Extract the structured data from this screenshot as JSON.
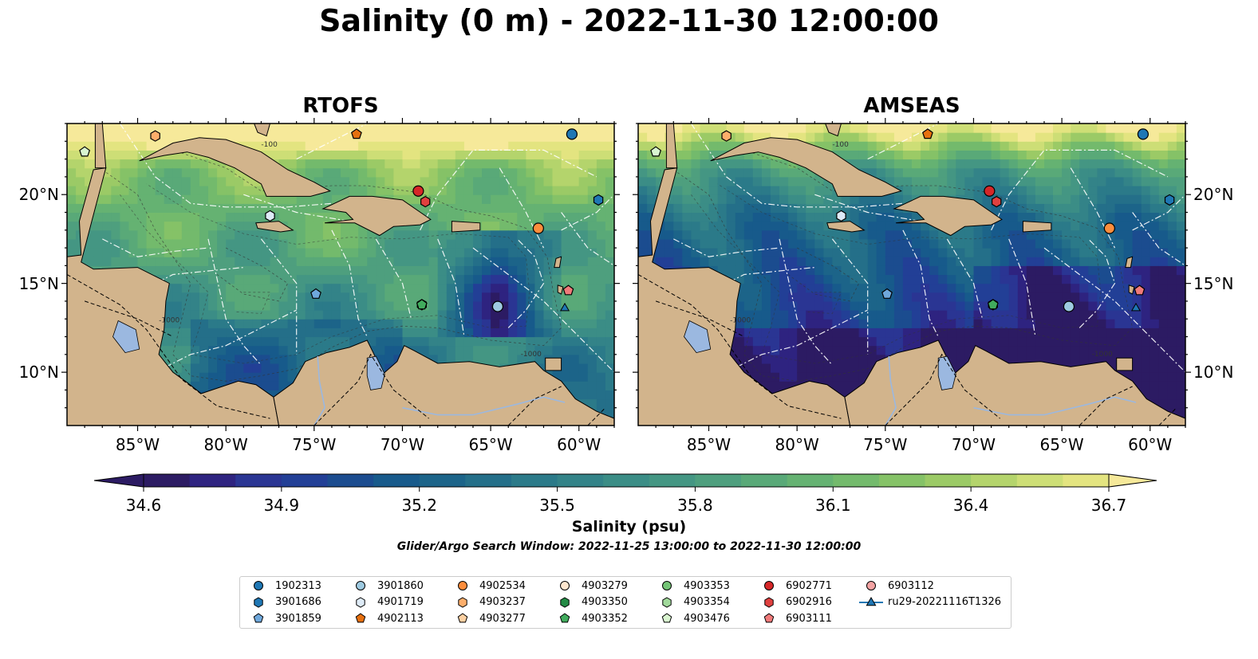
{
  "title": "Salinity (0 m) - 2022-11-30 12:00:00",
  "panels": [
    {
      "title": "RTOFS"
    },
    {
      "title": "AMSEAS"
    }
  ],
  "axes": {
    "lat_ticks": [
      "20°N",
      "15°N",
      "10°N"
    ],
    "lon_ticks": [
      "85°W",
      "80°W",
      "75°W",
      "70°W",
      "65°W",
      "60°W"
    ]
  },
  "contour_labels": [
    "-100",
    "-1000"
  ],
  "colorbar": {
    "label": "Salinity (psu)",
    "ticks": [
      "34.6",
      "34.9",
      "35.2",
      "35.5",
      "35.8",
      "36.1",
      "36.4",
      "36.7"
    ],
    "colors": [
      "#2c1b63",
      "#2e2380",
      "#2a3593",
      "#223f96",
      "#1b4c8f",
      "#175a8b",
      "#1c6489",
      "#246f89",
      "#2b7a89",
      "#338388",
      "#3b8d86",
      "#449683",
      "#4e9f7e",
      "#59a978",
      "#65b272",
      "#73ba6c",
      "#85c267",
      "#9bca66",
      "#b4d46c",
      "#cdde76",
      "#e3e480"
    ],
    "over_color": "#f6e99a"
  },
  "search_window": "Glider/Argo Search Window: 2022-11-25 13:00:00 to 2022-11-30 12:00:00",
  "legend": [
    {
      "label": "1902313",
      "marker": "circle",
      "color": "#1f77b4"
    },
    {
      "label": "3901686",
      "marker": "hexagon",
      "color": "#1f77b4"
    },
    {
      "label": "3901859",
      "marker": "pentagon",
      "color": "#6fa8dc"
    },
    {
      "label": "3901860",
      "marker": "circle",
      "color": "#9ecae1"
    },
    {
      "label": "4901719",
      "marker": "hexagon",
      "color": "#deebf7"
    },
    {
      "label": "4902113",
      "marker": "pentagon",
      "color": "#e6700f"
    },
    {
      "label": "4902534",
      "marker": "circle",
      "color": "#fd8d3c"
    },
    {
      "label": "4903237",
      "marker": "hexagon",
      "color": "#fdae6b"
    },
    {
      "label": "4903277",
      "marker": "pentagon",
      "color": "#fdd0a2"
    },
    {
      "label": "4903279",
      "marker": "circle",
      "color": "#fee6ce"
    },
    {
      "label": "4903350",
      "marker": "hexagon",
      "color": "#238b45"
    },
    {
      "label": "4903352",
      "marker": "pentagon",
      "color": "#41ab5d"
    },
    {
      "label": "4903353",
      "marker": "circle",
      "color": "#74c476"
    },
    {
      "label": "4903354",
      "marker": "hexagon",
      "color": "#a1d99b"
    },
    {
      "label": "4903476",
      "marker": "pentagon",
      "color": "#d9f5d0"
    },
    {
      "label": "6902771",
      "marker": "circle",
      "color": "#d62728"
    },
    {
      "label": "6902916",
      "marker": "hexagon",
      "color": "#e0403f"
    },
    {
      "label": "6903111",
      "marker": "pentagon",
      "color": "#f07a7a"
    },
    {
      "label": "6903112",
      "marker": "circle",
      "color": "#f4a3a3"
    },
    {
      "label": "ru29-20221116T1326",
      "marker": "triangle-line",
      "color": "#1f77b4"
    }
  ],
  "colors": {
    "land": "#d2b48c",
    "lake": "#9bb8e0",
    "glider": "#1f77b4"
  }
}
